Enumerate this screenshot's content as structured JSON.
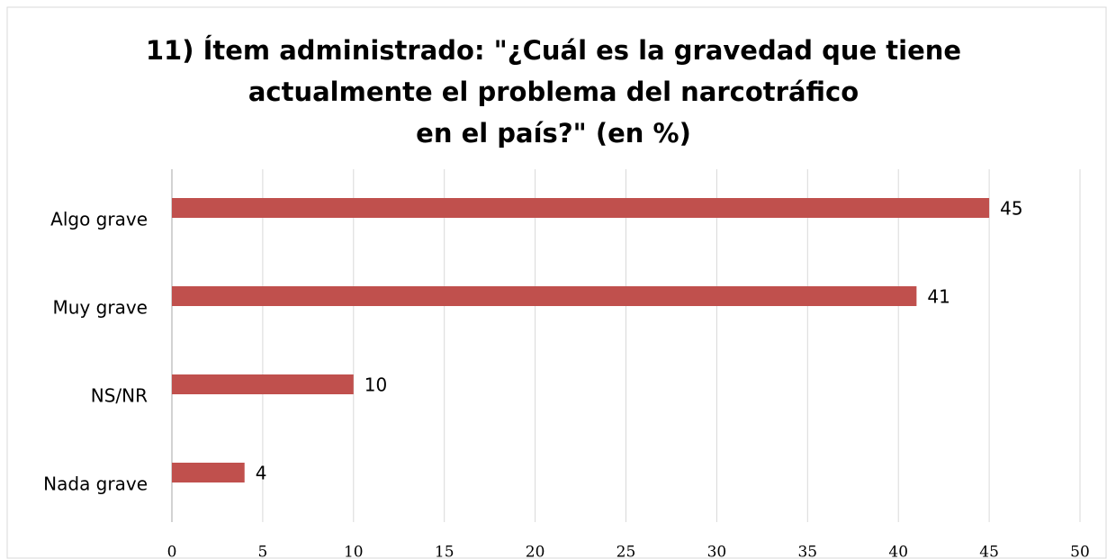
{
  "chart_data": {
    "type": "barh",
    "title": [
      "11) Ítem administrado: \"¿Cuál es la gravedad que tiene",
      "actualmente el problema del narcotráfico",
      "en el país?\" (en %)"
    ],
    "categories": [
      "Algo grave",
      "Muy grave",
      "NS/NR",
      "Nada grave"
    ],
    "values": [
      45,
      41,
      10,
      4
    ],
    "color": "#c0504d",
    "xlim": [
      0,
      50
    ],
    "xticks": [
      0,
      5,
      10,
      15,
      20,
      25,
      30,
      35,
      40,
      45,
      50
    ],
    "grid": true
  }
}
